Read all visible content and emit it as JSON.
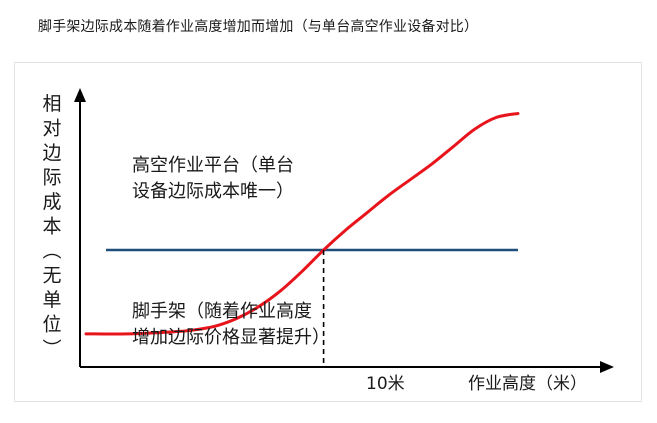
{
  "page": {
    "title": "脚手架边际成本随着作业高度增加而增加（与单台高空作业设备对比）"
  },
  "chart_data": {
    "type": "line",
    "title": "脚手架边际成本随着作业高度增加而增加（与单台高空作业设备对比）",
    "xlabel": "作业高度（米）",
    "ylabel": "相对边际成本（无单位）",
    "x_tick_labels": [
      "10米"
    ],
    "grid": false,
    "axis_tick_values": false,
    "series": [
      {
        "name": "高空作业平台（单台设备边际成本唯一）",
        "label_lines": [
          "高空作业平台（单台",
          "设备边际成本唯一）"
        ],
        "color": "#1f4e79",
        "x": [
          2,
          22
        ],
        "y": [
          60,
          60
        ]
      },
      {
        "name": "脚手架（随着作业高度增加边际价格显著提升）",
        "label_lines": [
          "脚手架（随着作业高度",
          "增加边际价格显著提升）"
        ],
        "color": "#e8141b",
        "x": [
          2,
          4,
          6,
          7,
          8,
          9,
          10,
          11,
          12,
          13,
          14,
          15,
          16,
          17,
          18,
          19,
          20,
          21,
          22
        ],
        "y": [
          17,
          17,
          18,
          19,
          21,
          25,
          31,
          39,
          49,
          60,
          70,
          79,
          88,
          96,
          104,
          113,
          122,
          128,
          130
        ]
      }
    ],
    "annotation": {
      "x": 13,
      "text": "10米",
      "style": "dashed vertical line at intersection"
    },
    "colors": {
      "axis": "#000000",
      "flat_line": "#1f4e79",
      "scaffold_curve": "#e8141b"
    }
  }
}
